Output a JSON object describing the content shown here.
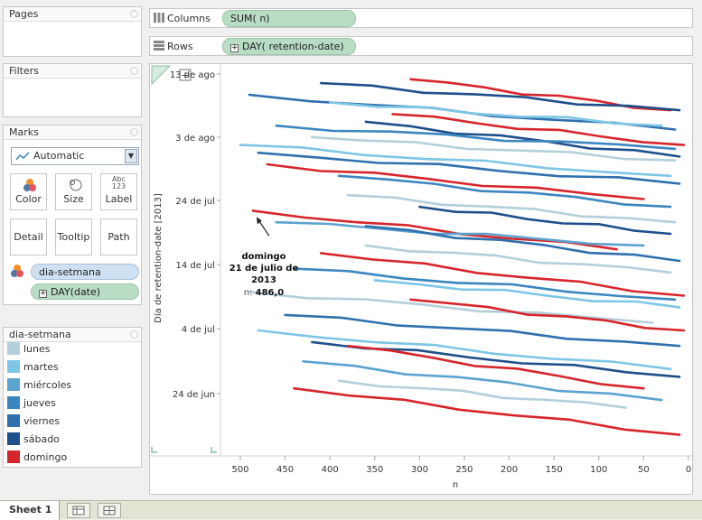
{
  "pages": {
    "title": "Pages"
  },
  "filters": {
    "title": "Filters"
  },
  "marks": {
    "title": "Marks",
    "mark_type": "Automatic",
    "buttons": [
      "Color",
      "Size",
      "Label",
      "Detail",
      "Tooltip",
      "Path"
    ],
    "label_icon_text": "Abc\n123",
    "pills": [
      {
        "label": "dia-setmana",
        "color": "#cfe0f3"
      },
      {
        "label": "DAY(date)",
        "color": "#b8dcc4"
      }
    ]
  },
  "shelves": {
    "columns": {
      "label": "Columns",
      "pill": "SUM( n)"
    },
    "rows": {
      "label": "Rows",
      "pill": "DAY( retention-date)"
    }
  },
  "legend": {
    "title": "dia-setmana",
    "items": [
      {
        "label": "lunes",
        "color": "#b4cfdb"
      },
      {
        "label": "martes",
        "color": "#7ec6e6"
      },
      {
        "label": "miércoles",
        "color": "#5ba3d0"
      },
      {
        "label": "jueves",
        "color": "#3c86bf"
      },
      {
        "label": "viernes",
        "color": "#2f70ad"
      },
      {
        "label": "sábado",
        "color": "#1f4f8b"
      },
      {
        "label": "domingo",
        "color": "#d6262b"
      }
    ]
  },
  "tabs": {
    "sheet": "Sheet 1"
  },
  "chart_data": {
    "type": "line",
    "ylabel": "Día de  retention-date [2013]",
    "xlabel": "n",
    "x_ticks": [
      500,
      450,
      400,
      350,
      300,
      250,
      200,
      150,
      100,
      50,
      0
    ],
    "xlim": [
      0,
      500
    ],
    "x_reversed": true,
    "y_tick_labels": [
      "13 de ago",
      "3 de ago",
      "24 de jul",
      "14 de jul",
      "4 de jul",
      "24 de jun"
    ],
    "annotation": {
      "line1": "domingo",
      "line2": "21 de julio de",
      "line3": "2013",
      "n_label": "n:",
      "n_value": "486,0"
    },
    "series": [
      {
        "dia": "domingo",
        "start_n": 310,
        "start_y": 0.03,
        "end_n": 20,
        "end_y": 0.11
      },
      {
        "dia": "sábado",
        "start_n": 410,
        "start_y": 0.04,
        "end_n": 10,
        "end_y": 0.11
      },
      {
        "dia": "viernes",
        "start_n": 490,
        "start_y": 0.07,
        "end_n": 15,
        "end_y": 0.16
      },
      {
        "dia": "martes",
        "start_n": 400,
        "start_y": 0.09,
        "end_n": 30,
        "end_y": 0.15
      },
      {
        "dia": "domingo",
        "start_n": 330,
        "start_y": 0.12,
        "end_n": 5,
        "end_y": 0.2
      },
      {
        "dia": "sábado",
        "start_n": 360,
        "start_y": 0.14,
        "end_n": 10,
        "end_y": 0.23
      },
      {
        "dia": "jueves",
        "start_n": 460,
        "start_y": 0.15,
        "end_n": 15,
        "end_y": 0.21
      },
      {
        "dia": "lunes",
        "start_n": 420,
        "start_y": 0.18,
        "end_n": 15,
        "end_y": 0.24
      },
      {
        "dia": "martes",
        "start_n": 500,
        "start_y": 0.2,
        "end_n": 20,
        "end_y": 0.28
      },
      {
        "dia": "viernes",
        "start_n": 480,
        "start_y": 0.22,
        "end_n": 10,
        "end_y": 0.3
      },
      {
        "dia": "domingo",
        "start_n": 470,
        "start_y": 0.25,
        "end_n": 50,
        "end_y": 0.34
      },
      {
        "dia": "jueves",
        "start_n": 390,
        "start_y": 0.28,
        "end_n": 20,
        "end_y": 0.36
      },
      {
        "dia": "lunes",
        "start_n": 380,
        "start_y": 0.33,
        "end_n": 15,
        "end_y": 0.4
      },
      {
        "dia": "domingo",
        "start_n": 486,
        "start_y": 0.37,
        "end_n": 80,
        "end_y": 0.47
      },
      {
        "dia": "sábado",
        "start_n": 300,
        "start_y": 0.36,
        "end_n": 20,
        "end_y": 0.43
      },
      {
        "dia": "miércoles",
        "start_n": 460,
        "start_y": 0.4,
        "end_n": 50,
        "end_y": 0.46
      },
      {
        "dia": "viernes",
        "start_n": 360,
        "start_y": 0.41,
        "end_n": 10,
        "end_y": 0.5
      },
      {
        "dia": "lunes",
        "start_n": 360,
        "start_y": 0.46,
        "end_n": 20,
        "end_y": 0.53
      },
      {
        "dia": "domingo",
        "start_n": 410,
        "start_y": 0.48,
        "end_n": 5,
        "end_y": 0.59
      },
      {
        "dia": "jueves",
        "start_n": 440,
        "start_y": 0.52,
        "end_n": 15,
        "end_y": 0.6
      },
      {
        "dia": "martes",
        "start_n": 350,
        "start_y": 0.55,
        "end_n": 10,
        "end_y": 0.62
      },
      {
        "dia": "lunes",
        "start_n": 490,
        "start_y": 0.58,
        "end_n": 40,
        "end_y": 0.66
      },
      {
        "dia": "domingo",
        "start_n": 310,
        "start_y": 0.6,
        "end_n": 5,
        "end_y": 0.68
      },
      {
        "dia": "viernes",
        "start_n": 450,
        "start_y": 0.64,
        "end_n": 10,
        "end_y": 0.72
      },
      {
        "dia": "martes",
        "start_n": 480,
        "start_y": 0.68,
        "end_n": 20,
        "end_y": 0.78
      },
      {
        "dia": "sábado",
        "start_n": 420,
        "start_y": 0.71,
        "end_n": 10,
        "end_y": 0.8
      },
      {
        "dia": "domingo",
        "start_n": 380,
        "start_y": 0.72,
        "end_n": 50,
        "end_y": 0.83
      },
      {
        "dia": "miércoles",
        "start_n": 430,
        "start_y": 0.76,
        "end_n": 30,
        "end_y": 0.86
      },
      {
        "dia": "lunes",
        "start_n": 390,
        "start_y": 0.81,
        "end_n": 70,
        "end_y": 0.88
      },
      {
        "dia": "domingo",
        "start_n": 440,
        "start_y": 0.83,
        "end_n": 10,
        "end_y": 0.95
      }
    ]
  }
}
